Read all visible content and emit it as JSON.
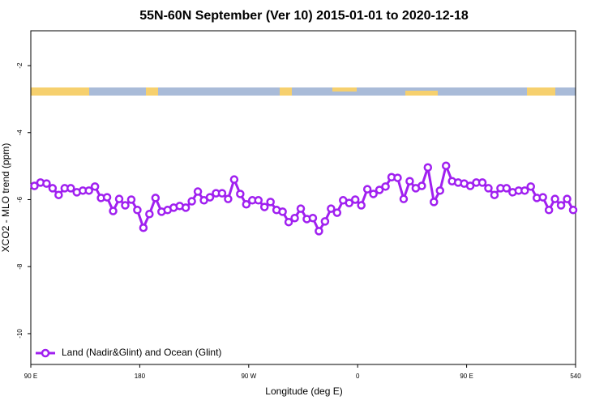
{
  "chart_data": {
    "type": "line",
    "title": "55N-60N September (Ver 10)   2015-01-01 to 2020-12-18",
    "x_label": "Longitude (deg E)",
    "y_label": "XCO2 - MLO trend (ppm)",
    "xlim": [
      90,
      540
    ],
    "ylim": [
      -10.92,
      -0.96
    ],
    "xticks": [
      {
        "value": 90,
        "label": "90 E"
      },
      180,
      {
        "value": 270,
        "label": "90 W"
      },
      {
        "value": 360,
        "label": "0"
      },
      {
        "value": 450,
        "label": "90 E"
      },
      540
    ],
    "yticks": [
      -2,
      -4,
      -6,
      -8,
      -10
    ],
    "legend": "bottomleft",
    "series": [
      {
        "name": "Land (Nadir&Glint) and Ocean (Glint)",
        "color": "#a020f0",
        "x": [
          93,
          98,
          103,
          108,
          113,
          118,
          123,
          128,
          133,
          138,
          143,
          148,
          153,
          158,
          163,
          168,
          173,
          178,
          183,
          188,
          193,
          198,
          203,
          208,
          213,
          218,
          223,
          228,
          233,
          238,
          243,
          248,
          253,
          258,
          263,
          268,
          273,
          278,
          283,
          288,
          293,
          298,
          303,
          308,
          313,
          318,
          323,
          328,
          333,
          338,
          343,
          348,
          353,
          358,
          363,
          368,
          373,
          378,
          383,
          388,
          393,
          398,
          403,
          408,
          413,
          418,
          423,
          428,
          433,
          438,
          443,
          448,
          453,
          458,
          463,
          468,
          473,
          478,
          483,
          488,
          493,
          498,
          503,
          508,
          513,
          518,
          523,
          528,
          533,
          538
        ],
        "values": [
          -5.59,
          -5.49,
          -5.52,
          -5.66,
          -5.86,
          -5.66,
          -5.66,
          -5.78,
          -5.73,
          -5.73,
          -5.61,
          -5.95,
          -5.93,
          -6.34,
          -5.98,
          -6.17,
          -6.0,
          -6.31,
          -6.84,
          -6.43,
          -5.95,
          -6.36,
          -6.31,
          -6.24,
          -6.19,
          -6.24,
          -6.05,
          -5.76,
          -6.02,
          -5.93,
          -5.81,
          -5.81,
          -5.98,
          -5.4,
          -5.83,
          -6.14,
          -6.02,
          -6.02,
          -6.22,
          -6.07,
          -6.31,
          -6.36,
          -6.67,
          -6.55,
          -6.27,
          -6.58,
          -6.55,
          -6.94,
          -6.65,
          -6.27,
          -6.39,
          -6.02,
          -6.1,
          -6.0,
          -6.17,
          -5.69,
          -5.83,
          -5.71,
          -5.61,
          -5.33,
          -5.35,
          -5.98,
          -5.45,
          -5.66,
          -5.59,
          -5.04,
          -6.07,
          -5.73,
          -4.99,
          -5.45,
          -5.49,
          -5.52,
          -5.59,
          -5.49,
          -5.49,
          -5.66,
          -5.86,
          -5.66,
          -5.66,
          -5.78,
          -5.73,
          -5.73,
          -5.61,
          -5.95,
          -5.93,
          -6.31,
          -5.98,
          -6.17,
          -5.98,
          -6.31
        ]
      }
    ]
  }
}
